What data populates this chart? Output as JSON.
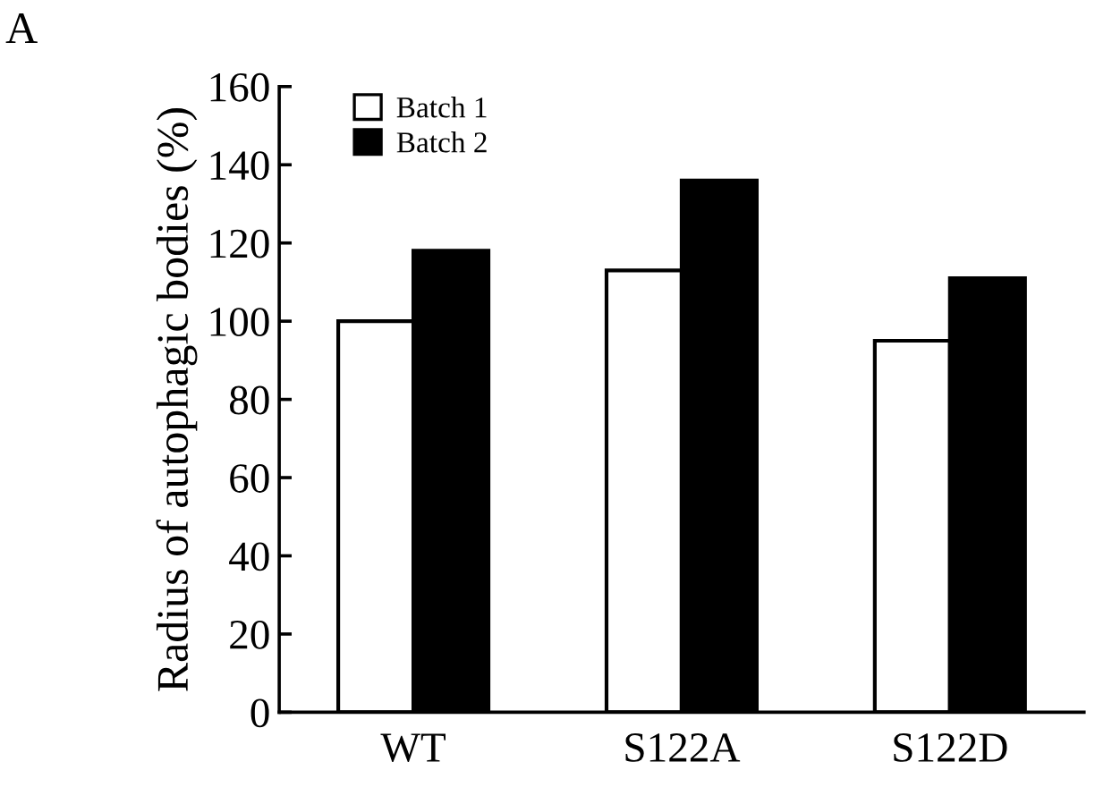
{
  "chart_data": {
    "type": "bar",
    "ylabel": "Radius of autophagic bodies (%)",
    "annotations": [
      "A"
    ],
    "categories": [
      "WT",
      "S122A",
      "S122D"
    ],
    "series": [
      {
        "name": "Batch 1",
        "color": "#ffffff",
        "values": [
          100,
          113,
          95
        ]
      },
      {
        "name": "Batch 2",
        "color": "#000000",
        "values": [
          118,
          136,
          111
        ]
      }
    ],
    "ylim": [
      0,
      160
    ],
    "yticks": [
      0,
      20,
      40,
      60,
      80,
      100,
      120,
      140,
      160
    ],
    "grid": false,
    "legend": "top left"
  }
}
